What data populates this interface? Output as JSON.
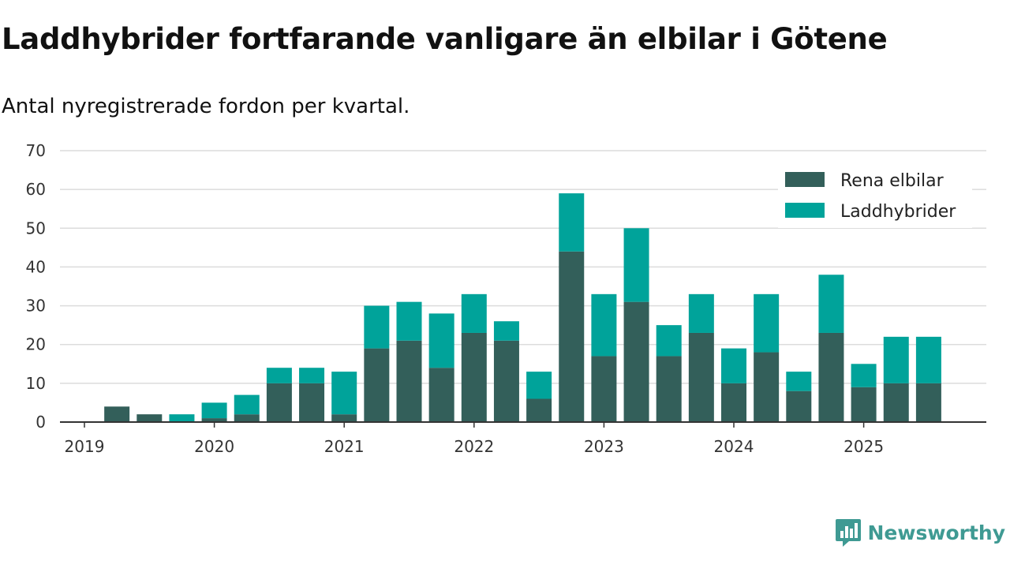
{
  "chart_data": {
    "type": "bar",
    "stacked": true,
    "title": "Laddhybrider fortfarande vanligare än elbilar i Götene",
    "subtitle": "Antal nyregistrerade fordon per kvartal.",
    "xlabel": "",
    "ylabel": "",
    "ylim": [
      0,
      70
    ],
    "yticks": [
      0,
      10,
      20,
      30,
      40,
      50,
      60,
      70
    ],
    "xtick_labels": [
      "2019",
      "2020",
      "2021",
      "2022",
      "2023",
      "2024",
      "2025"
    ],
    "categories": [
      "2019 Q1",
      "2019 Q2",
      "2019 Q3",
      "2019 Q4",
      "2020 Q1",
      "2020 Q2",
      "2020 Q3",
      "2020 Q4",
      "2021 Q1",
      "2021 Q2",
      "2021 Q3",
      "2021 Q4",
      "2022 Q1",
      "2022 Q2",
      "2022 Q3",
      "2022 Q4",
      "2023 Q1",
      "2023 Q2",
      "2023 Q3",
      "2023 Q4",
      "2024 Q1",
      "2024 Q2",
      "2024 Q3",
      "2024 Q4",
      "2025 Q1",
      "2025 Q2",
      "2025 Q3",
      "2025 Q4"
    ],
    "series": [
      {
        "name": "Rena elbilar",
        "color": "#335f5a",
        "values": [
          0,
          4,
          2,
          0,
          1,
          2,
          10,
          10,
          2,
          19,
          21,
          14,
          23,
          21,
          6,
          44,
          17,
          31,
          17,
          23,
          10,
          18,
          8,
          23,
          9,
          10,
          10,
          null
        ]
      },
      {
        "name": "Laddhybrider",
        "color": "#00a39a",
        "values": [
          0,
          0,
          0,
          2,
          4,
          5,
          4,
          4,
          11,
          11,
          10,
          14,
          10,
          5,
          7,
          15,
          16,
          19,
          8,
          10,
          9,
          15,
          5,
          15,
          6,
          12,
          12,
          null
        ]
      }
    ],
    "legend_position": "top-right",
    "grid": true
  },
  "branding": {
    "name": "Newsworthy",
    "logo_icon": "newsworthy-logo-icon",
    "color": "#3f9a93"
  }
}
